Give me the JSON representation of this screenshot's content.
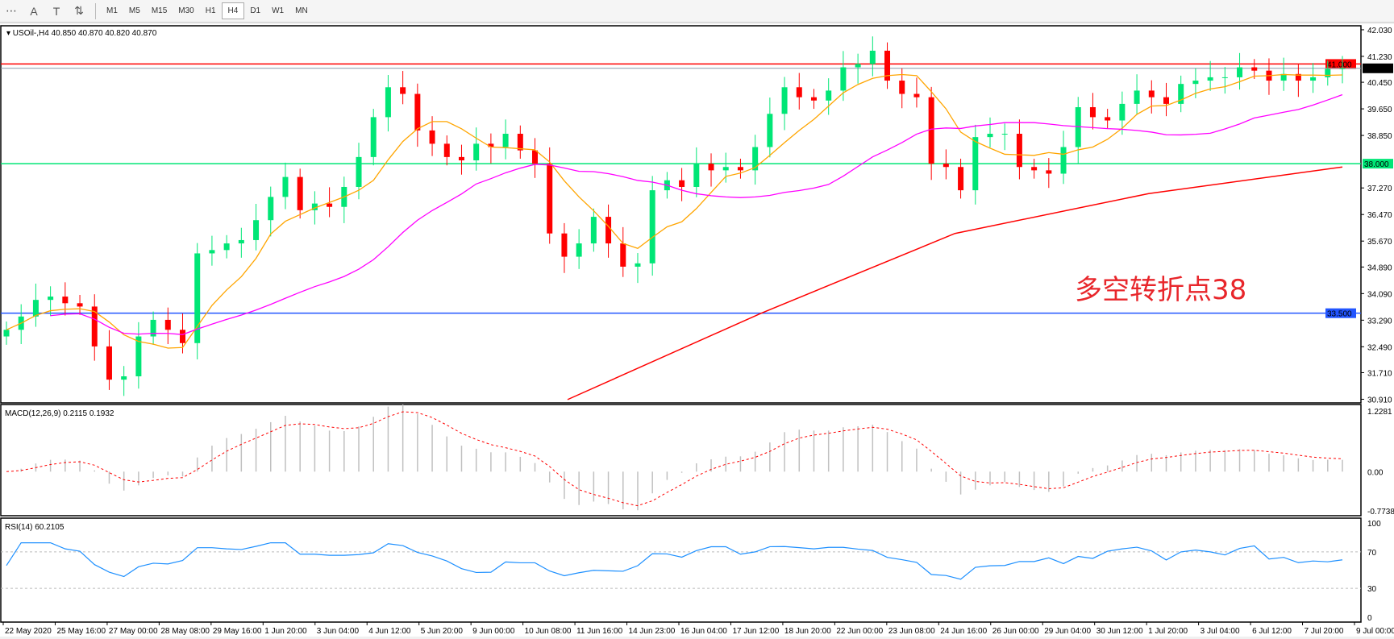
{
  "toolbar": {
    "icons": [
      "fibonacci-fan-icon",
      "text-icon",
      "text-label-icon",
      "arrows-icon"
    ],
    "icon_glyphs": [
      "⋯",
      "A",
      "T",
      "⇅"
    ],
    "timeframes": [
      "M1",
      "M5",
      "M15",
      "M30",
      "H1",
      "H4",
      "D1",
      "W1",
      "MN"
    ],
    "active_timeframe": "H4"
  },
  "chart_data": {
    "type": "candlestick",
    "symbol_header": "USOil-,H4  40.850 40.870 40.820 40.870",
    "annotation": "多空转折点38",
    "price_ticks": [
      "42.030",
      "41.230",
      "40.450",
      "39.650",
      "38.850",
      "37.270",
      "36.470",
      "35.670",
      "34.890",
      "34.090",
      "33.290",
      "32.490",
      "31.710",
      "30.910"
    ],
    "ylim": [
      30.8,
      42.15
    ],
    "hlines": [
      {
        "value": 41.0,
        "label": "41.000",
        "color": "#ff0000"
      },
      {
        "value": 40.87,
        "label": "40.870",
        "color": "#8899aa"
      },
      {
        "value": 38.0,
        "label": "38.000",
        "color": "#00e676"
      },
      {
        "value": 33.5,
        "label": "33.500",
        "color": "#2255ff"
      }
    ],
    "closes": [
      33.0,
      33.4,
      33.9,
      34.0,
      33.8,
      33.7,
      32.5,
      31.5,
      31.6,
      32.8,
      33.3,
      33.0,
      32.6,
      35.3,
      35.4,
      35.6,
      35.7,
      36.3,
      37.0,
      37.6,
      36.6,
      36.8,
      36.7,
      37.3,
      38.2,
      39.4,
      40.3,
      40.1,
      39.0,
      38.6,
      38.2,
      38.1,
      38.6,
      38.5,
      38.9,
      38.4,
      38.0,
      35.9,
      35.2,
      35.6,
      36.4,
      35.6,
      34.9,
      35.0,
      37.2,
      37.5,
      37.3,
      38.0,
      37.8,
      37.9,
      37.8,
      38.5,
      39.5,
      40.3,
      40.0,
      39.9,
      40.2,
      40.9,
      41.0,
      41.4,
      40.5,
      40.1,
      40.0,
      38.0,
      37.9,
      37.2,
      38.8,
      38.9,
      38.9,
      37.9,
      37.8,
      37.7,
      38.5,
      39.7,
      39.4,
      39.3,
      39.8,
      40.2,
      40.0,
      39.8,
      40.4,
      40.5,
      40.6,
      40.6,
      40.9,
      40.8,
      40.5,
      40.7,
      40.5,
      40.6,
      40.85,
      40.87
    ],
    "ma_long": {
      "start_fraction": 0.42,
      "values": [
        30.9,
        33.5,
        35.9,
        37.1,
        37.9
      ]
    },
    "colors": {
      "bull": "#00e676",
      "bear": "#ff0000",
      "ma_fast": "#ffa500",
      "ma_mid": "#ff00ff",
      "ma_long": "#ff0000",
      "rsi": "#1e90ff",
      "macd_hist": "#c0c0c0",
      "macd_signal": "#ff0000"
    },
    "macd": {
      "label": "MACD(12,26,9) 0.2115 0.1932",
      "ticks": [
        "1.2281",
        "0.00",
        "-0.7738"
      ],
      "ylim": [
        -0.7738,
        1.2281
      ]
    },
    "rsi": {
      "label": "RSI(14) 60.2105",
      "ticks": [
        "100",
        "70",
        "30",
        "0"
      ],
      "levels": [
        70,
        30
      ]
    },
    "time_labels": [
      "22 May 2020",
      "25 May 16:00",
      "27 May 00:00",
      "28 May 08:00",
      "29 May 16:00",
      "1 Jun 20:00",
      "3 Jun 04:00",
      "4 Jun 12:00",
      "5 Jun 20:00",
      "9 Jun 00:00",
      "10 Jun 08:00",
      "11 Jun 16:00",
      "14 Jun 23:00",
      "16 Jun 04:00",
      "17 Jun 12:00",
      "18 Jun 20:00",
      "22 Jun 00:00",
      "23 Jun 08:00",
      "24 Jun 16:00",
      "26 Jun 00:00",
      "29 Jun 04:00",
      "30 Jun 12:00",
      "1 Jul 20:00",
      "3 Jul 04:00",
      "6 Jul 12:00",
      "7 Jul 20:00",
      "9 Jul 00:00"
    ]
  }
}
